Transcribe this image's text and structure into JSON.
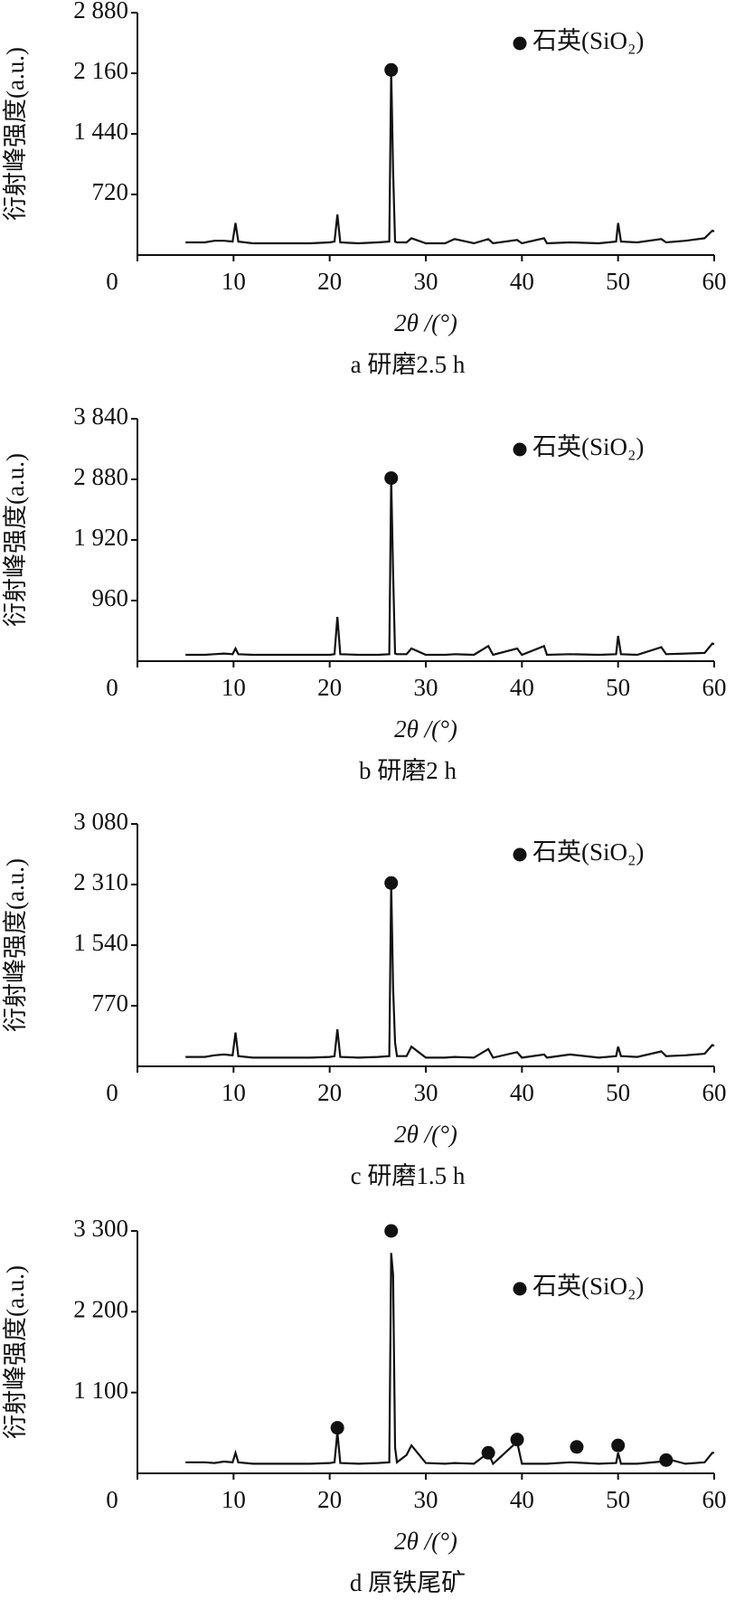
{
  "chart_data": [
    {
      "type": "line",
      "subtitle": "a 研磨2.5 h",
      "xlabel": "2θ /(°)",
      "ylabel": "衍射峰强度(a.u.)",
      "xlim": [
        0,
        60
      ],
      "xticks": [
        0,
        10,
        20,
        30,
        40,
        50,
        60
      ],
      "ylim": [
        0,
        2880
      ],
      "yticks": [
        {
          "value": 720,
          "label": "720"
        },
        {
          "value": 1440,
          "label": "1 440"
        },
        {
          "value": 2160,
          "label": "2 160"
        },
        {
          "value": 2880,
          "label": "2 880"
        }
      ],
      "legend": "upper right",
      "series": [
        {
          "color": "#111111",
          "x": [
            5,
            7,
            8,
            9,
            9.9,
            10.2,
            10.5,
            12,
            15,
            18,
            20,
            20.5,
            20.8,
            21.1,
            23,
            25,
            26.2,
            26.4,
            26.6,
            26.8,
            27,
            28,
            28.5,
            30,
            32,
            33,
            35,
            36.5,
            37,
            39.5,
            40,
            42.3,
            42.6,
            45,
            48,
            49.8,
            50,
            50.3,
            52,
            54.5,
            55,
            57,
            59,
            59.8,
            60
          ],
          "values": [
            150,
            150,
            170,
            170,
            160,
            380,
            160,
            140,
            140,
            140,
            150,
            160,
            480,
            150,
            140,
            150,
            160,
            2200,
            1000,
            160,
            150,
            150,
            200,
            140,
            140,
            190,
            140,
            190,
            140,
            180,
            140,
            200,
            140,
            150,
            140,
            160,
            380,
            160,
            150,
            190,
            150,
            170,
            200,
            290,
            280
          ]
        },
        {
          "name": "石英(SiO₂)",
          "color": "#111111",
          "x": [
            26.4
          ],
          "values": [
            2200
          ]
        }
      ]
    },
    {
      "type": "line",
      "subtitle": "b 研磨2 h",
      "xlabel": "2θ /(°)",
      "ylabel": "衍射峰强度(a.u.)",
      "xlim": [
        0,
        60
      ],
      "xticks": [
        0,
        10,
        20,
        30,
        40,
        50,
        60
      ],
      "ylim": [
        0,
        3840
      ],
      "yticks": [
        960,
        {
          "value": 1920,
          "label": "1 920"
        },
        {
          "value": 2880,
          "label": "2 880"
        },
        {
          "value": 3840,
          "label": "3 840"
        }
      ],
      "legend": "upper right",
      "series": [
        {
          "color": "#111111",
          "x": [
            5,
            7,
            8,
            9,
            9.9,
            10.2,
            10.5,
            12,
            15,
            18,
            20,
            20.5,
            20.8,
            21.1,
            23,
            25,
            26.2,
            26.4,
            26.6,
            26.8,
            27,
            28,
            28.5,
            30,
            32,
            33,
            35,
            36.5,
            37,
            39.5,
            40,
            42.3,
            42.6,
            45,
            48,
            49.8,
            50,
            50.3,
            52,
            54.5,
            55,
            57,
            59,
            59.8,
            60
          ],
          "values": [
            100,
            100,
            110,
            120,
            110,
            200,
            110,
            100,
            100,
            100,
            100,
            110,
            700,
            110,
            100,
            100,
            110,
            2900,
            1400,
            120,
            110,
            110,
            200,
            100,
            100,
            110,
            100,
            240,
            100,
            200,
            100,
            240,
            100,
            110,
            100,
            110,
            400,
            110,
            100,
            220,
            110,
            120,
            130,
            280,
            270
          ]
        },
        {
          "name": "石英(SiO₂)",
          "color": "#111111",
          "x": [
            26.4
          ],
          "values": [
            2900
          ]
        }
      ]
    },
    {
      "type": "line",
      "subtitle": "c 研磨1.5 h",
      "xlabel": "2θ /(°)",
      "ylabel": "衍射峰强度(a.u.)",
      "xlim": [
        0,
        60
      ],
      "xticks": [
        0,
        10,
        20,
        30,
        40,
        50,
        60
      ],
      "ylim": [
        0,
        3080
      ],
      "yticks": [
        770,
        {
          "value": 1540,
          "label": "1 540"
        },
        {
          "value": 2310,
          "label": "2 310"
        },
        {
          "value": 3080,
          "label": "3 080"
        }
      ],
      "legend": "upper right",
      "series": [
        {
          "color": "#111111",
          "x": [
            5,
            7,
            8,
            9,
            9.9,
            10.2,
            10.5,
            12,
            15,
            18,
            20,
            20.5,
            20.8,
            21.1,
            23,
            25,
            26.2,
            26.4,
            26.6,
            26.8,
            27,
            28,
            28.5,
            30,
            32,
            33,
            35,
            36.5,
            37,
            39.5,
            40,
            42.3,
            42.6,
            45,
            48,
            49.8,
            50,
            50.3,
            52,
            54.5,
            55,
            57,
            59,
            59.8,
            60
          ],
          "values": [
            120,
            120,
            140,
            150,
            140,
            430,
            130,
            110,
            110,
            110,
            120,
            130,
            470,
            120,
            110,
            120,
            130,
            2330,
            1000,
            300,
            130,
            130,
            250,
            110,
            110,
            120,
            110,
            220,
            110,
            180,
            110,
            150,
            110,
            150,
            110,
            130,
            250,
            130,
            120,
            190,
            130,
            140,
            160,
            270,
            260
          ]
        },
        {
          "name": "石英(SiO₂)",
          "color": "#111111",
          "x": [
            26.4
          ],
          "values": [
            2330
          ]
        }
      ]
    },
    {
      "type": "line",
      "subtitle": "d 原铁尾矿",
      "xlabel": "2θ /(°)",
      "ylabel": "衍射峰强度(a.u.)",
      "xlim": [
        0,
        60
      ],
      "xticks": [
        0,
        10,
        20,
        30,
        40,
        50,
        60
      ],
      "ylim": [
        0,
        3300
      ],
      "yticks": [
        {
          "value": 1100,
          "label": "1 100"
        },
        {
          "value": 2200,
          "label": "2 200"
        },
        {
          "value": 3300,
          "label": "3 300"
        }
      ],
      "legend": "upper right",
      "series": [
        {
          "color": "#111111",
          "x": [
            5,
            7,
            8,
            9,
            9.9,
            10.2,
            10.5,
            12,
            15,
            18,
            20,
            20.5,
            20.8,
            21.1,
            23,
            25,
            26.2,
            26.4,
            26.6,
            26.8,
            27,
            28,
            28.5,
            30,
            32,
            33,
            35,
            36.5,
            37,
            39.5,
            40,
            42.3,
            42.6,
            45,
            48,
            49.8,
            50,
            50.3,
            52,
            54.5,
            55,
            57,
            59,
            59.8,
            60
          ],
          "values": [
            150,
            150,
            140,
            160,
            150,
            280,
            150,
            130,
            130,
            130,
            140,
            150,
            560,
            140,
            130,
            140,
            150,
            3000,
            2700,
            350,
            150,
            250,
            380,
            140,
            130,
            140,
            130,
            280,
            130,
            430,
            130,
            130,
            130,
            150,
            130,
            140,
            280,
            130,
            130,
            160,
            200,
            130,
            150,
            280,
            280
          ]
        },
        {
          "name": "石英(SiO₂)",
          "color": "#111111",
          "x": [
            20.8,
            26.4,
            36.5,
            39.5,
            45.7,
            50,
            55
          ],
          "values": [
            620,
            3300,
            280,
            460,
            360,
            380,
            180
          ]
        }
      ]
    }
  ]
}
